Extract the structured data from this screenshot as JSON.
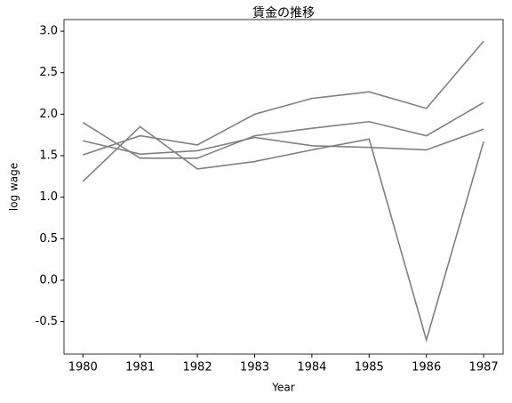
{
  "chart_data": {
    "type": "line",
    "title": "賃金の推移",
    "xlabel": "Year",
    "ylabel": "log wage",
    "x": [
      1980,
      1981,
      1982,
      1983,
      1984,
      1985,
      1986,
      1987
    ],
    "series": [
      {
        "color": "#808080",
        "values": [
          1.51,
          1.74,
          1.63,
          2.0,
          2.19,
          2.27,
          2.07,
          2.88
        ]
      },
      {
        "color": "#808080",
        "values": [
          1.9,
          1.47,
          1.47,
          1.74,
          1.83,
          1.91,
          1.74,
          2.14
        ]
      },
      {
        "color": "#808080",
        "values": [
          1.68,
          1.52,
          1.56,
          1.72,
          1.62,
          1.6,
          1.57,
          1.82
        ]
      },
      {
        "color": "#808080",
        "values": [
          1.19,
          1.85,
          1.34,
          1.43,
          1.57,
          1.7,
          -0.72,
          1.67
        ]
      }
    ],
    "xlim": [
      1979.67,
      1987.34
    ],
    "xticks": [
      1980,
      1981,
      1982,
      1983,
      1984,
      1985,
      1986,
      1987
    ],
    "ylim": [
      -0.89,
      3.14
    ],
    "yticks": [
      -0.5,
      {
        "value": 0,
        "label": "0.0"
      },
      0.5,
      {
        "value": 1,
        "label": "1.0"
      },
      1.5,
      {
        "value": 2,
        "label": "2.0"
      },
      2.5,
      {
        "value": 3,
        "label": "3.0"
      }
    ],
    "grid": false
  }
}
